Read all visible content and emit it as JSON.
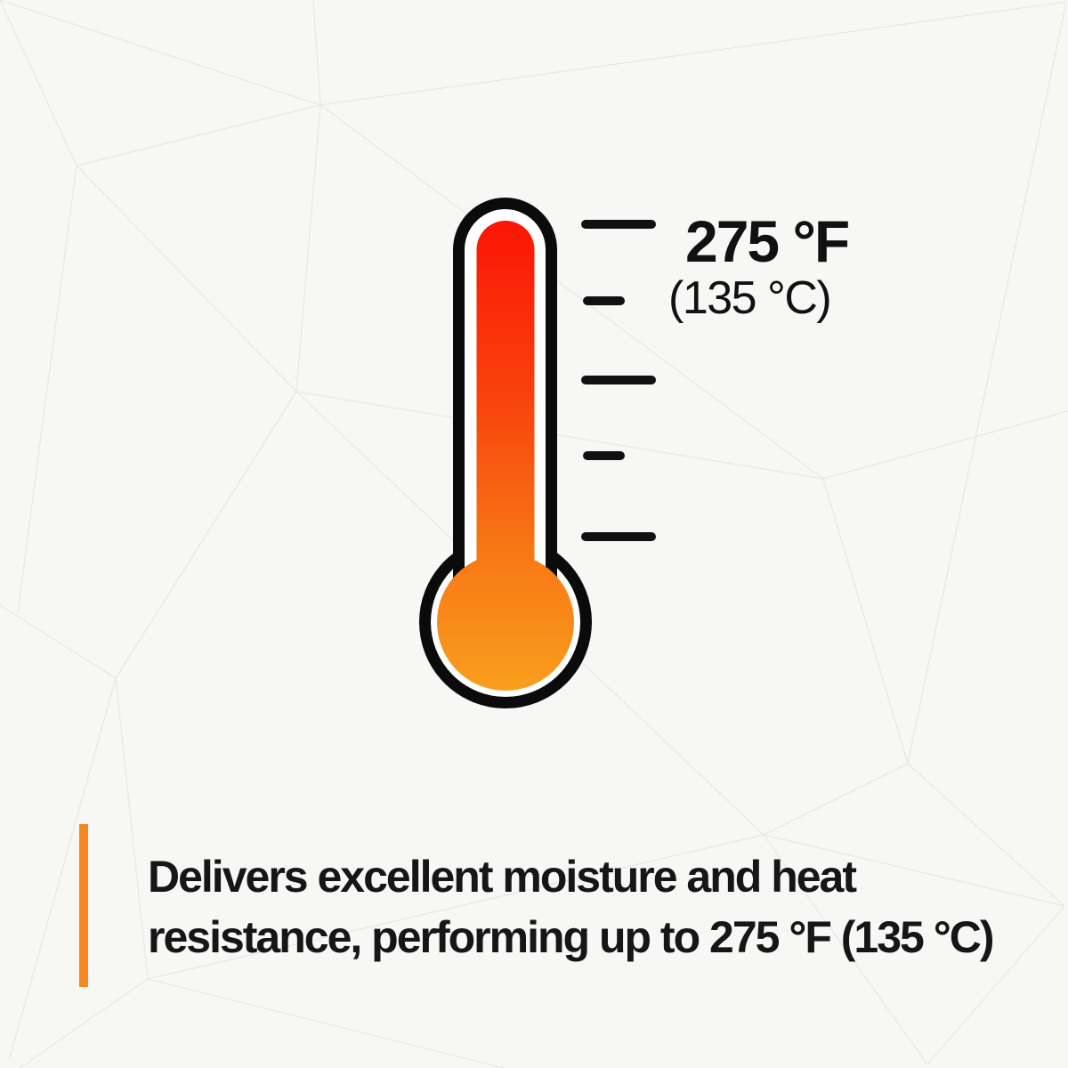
{
  "page": {
    "background_color": "#F7F7F5",
    "mesh_line_color": "#E8E8E6"
  },
  "thermometer": {
    "reading_fahrenheit": "275 °F",
    "reading_celsius": "(135 °C)",
    "label_color": "#111111",
    "outline_color": "#0B0B0B",
    "fluid_gradient": {
      "top": "#FB1505",
      "upper_mid": "#F9430D",
      "lower_mid": "#F77414",
      "bottom": "#F99E1D"
    },
    "scale_ticks": {
      "count": 5,
      "pattern": [
        "long",
        "short",
        "long",
        "short",
        "long"
      ]
    }
  },
  "caption": {
    "accent_bar_color": "#F6861F",
    "text_color": "#161616",
    "lines": [
      "Delivers excellent moisture and heat",
      "resistance, performing up to 275 °F (135 °C)"
    ]
  }
}
